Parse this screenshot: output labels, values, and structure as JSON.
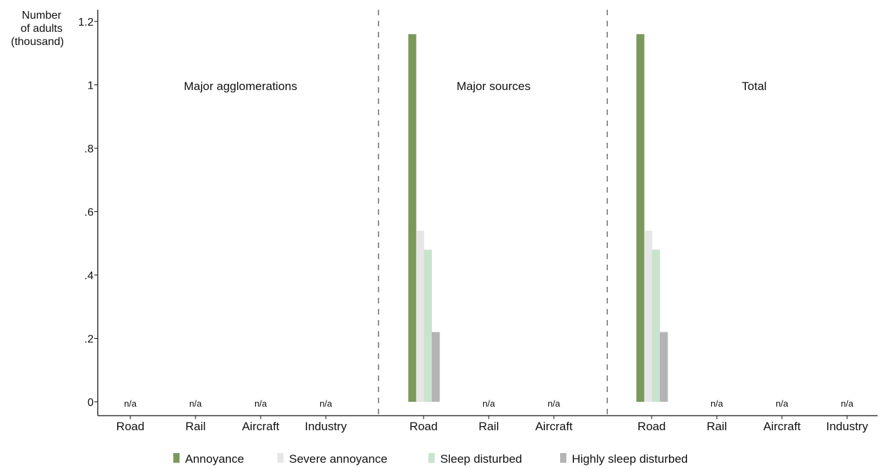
{
  "chart_data": {
    "type": "bar",
    "ylabel": [
      "Number",
      "of adults",
      "(thousand)"
    ],
    "ylim": [
      0,
      1.2
    ],
    "yticks": [
      {
        "value": 0,
        "label": "0"
      },
      {
        "value": 0.2,
        "label": ".2"
      },
      {
        "value": 0.4,
        "label": ".4"
      },
      {
        "value": 0.6,
        "label": ".6"
      },
      {
        "value": 0.8,
        "label": ".8"
      },
      {
        "value": 1.0,
        "label": "1"
      },
      {
        "value": 1.2,
        "label": "1.2"
      }
    ],
    "grid": false,
    "legend_position": "bottom",
    "series": [
      {
        "name": "Annoyance",
        "color": "#7a9a5c"
      },
      {
        "name": "Severe annoyance",
        "color": "#e6e6e6"
      },
      {
        "name": "Sleep disturbed",
        "color": "#c9e3cd"
      },
      {
        "name": "Highly sleep disturbed",
        "color": "#b4b4b4"
      }
    ],
    "panels": [
      {
        "title": "Major agglomerations",
        "categories": [
          {
            "label": "Road",
            "values": null,
            "na_label": "n/a"
          },
          {
            "label": "Rail",
            "values": null,
            "na_label": "n/a"
          },
          {
            "label": "Aircraft",
            "values": null,
            "na_label": "n/a"
          },
          {
            "label": "Industry",
            "values": null,
            "na_label": "n/a"
          }
        ]
      },
      {
        "title": "Major sources",
        "categories": [
          {
            "label": "Road",
            "values": [
              1.16,
              0.54,
              0.48,
              0.22
            ],
            "na_label": null
          },
          {
            "label": "Rail",
            "values": null,
            "na_label": "n/a"
          },
          {
            "label": "Aircraft",
            "values": null,
            "na_label": "n/a"
          }
        ]
      },
      {
        "title": "Total",
        "categories": [
          {
            "label": "Road",
            "values": [
              1.16,
              0.54,
              0.48,
              0.22
            ],
            "na_label": null
          },
          {
            "label": "Rail",
            "values": null,
            "na_label": "n/a"
          },
          {
            "label": "Aircraft",
            "values": null,
            "na_label": "n/a"
          },
          {
            "label": "Industry",
            "values": null,
            "na_label": "n/a"
          }
        ]
      }
    ]
  }
}
